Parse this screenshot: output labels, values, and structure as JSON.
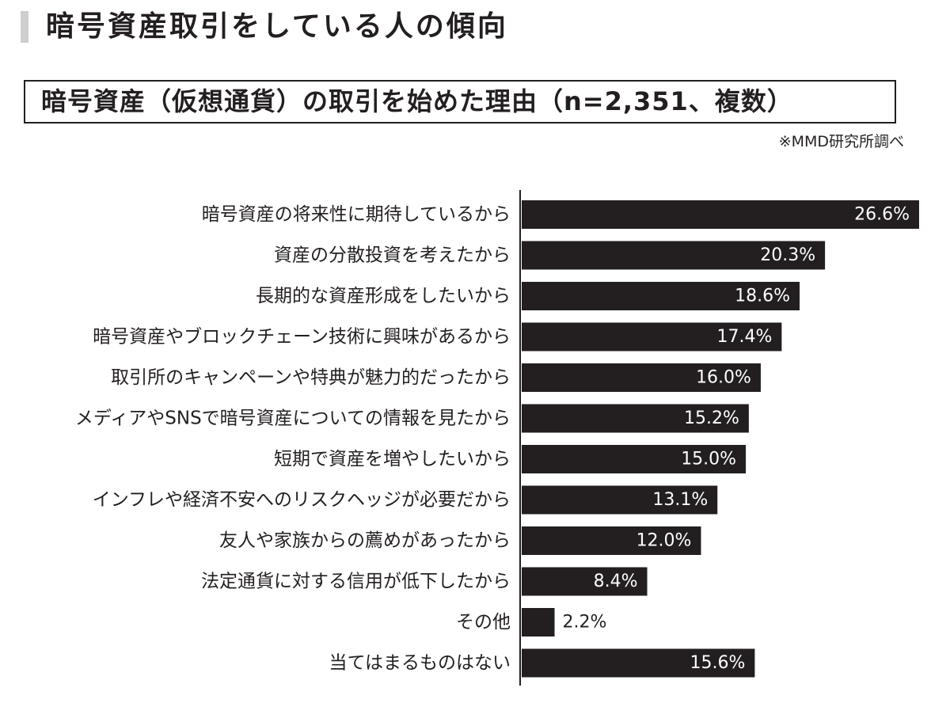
{
  "header": {
    "title": "暗号資産取引をしている人の傾向"
  },
  "chart_data": {
    "type": "bar",
    "orientation": "horizontal",
    "title": "暗号資産（仮想通貨）の取引を始めた理由（n=2,351、複数）",
    "source": "※MMD研究所調べ",
    "unit": "%",
    "categories": [
      "暗号資産の将来性に期待しているから",
      "資産の分散投資を考えたから",
      "長期的な資産形成をしたいから",
      "暗号資産やブロックチェーン技術に興味があるから",
      "取引所のキャンペーンや特典が魅力的だったから",
      "メディアやSNSで暗号資産についての情報を見たから",
      "短期で資産を増やしたいから",
      "インフレや経済不安へのリスクヘッジが必要だから",
      "友人や家族からの薦めがあったから",
      "法定通貨に対する信用が低下したから",
      "その他",
      "当てはまるものはない"
    ],
    "values": [
      26.6,
      20.3,
      18.6,
      17.4,
      16.0,
      15.2,
      15.0,
      13.1,
      12.0,
      8.4,
      2.2,
      15.6
    ],
    "value_labels": [
      "26.6%",
      "20.3%",
      "18.6%",
      "17.4%",
      "16.0%",
      "15.2%",
      "15.0%",
      "13.1%",
      "12.0%",
      "8.4%",
      "2.2%",
      "15.6%"
    ],
    "xlim": [
      0,
      26.6
    ],
    "grid": false,
    "legend": "none",
    "bar_color": "#231f20",
    "label_color_inside": "#ffffff",
    "label_color_outside": "#231f20"
  }
}
